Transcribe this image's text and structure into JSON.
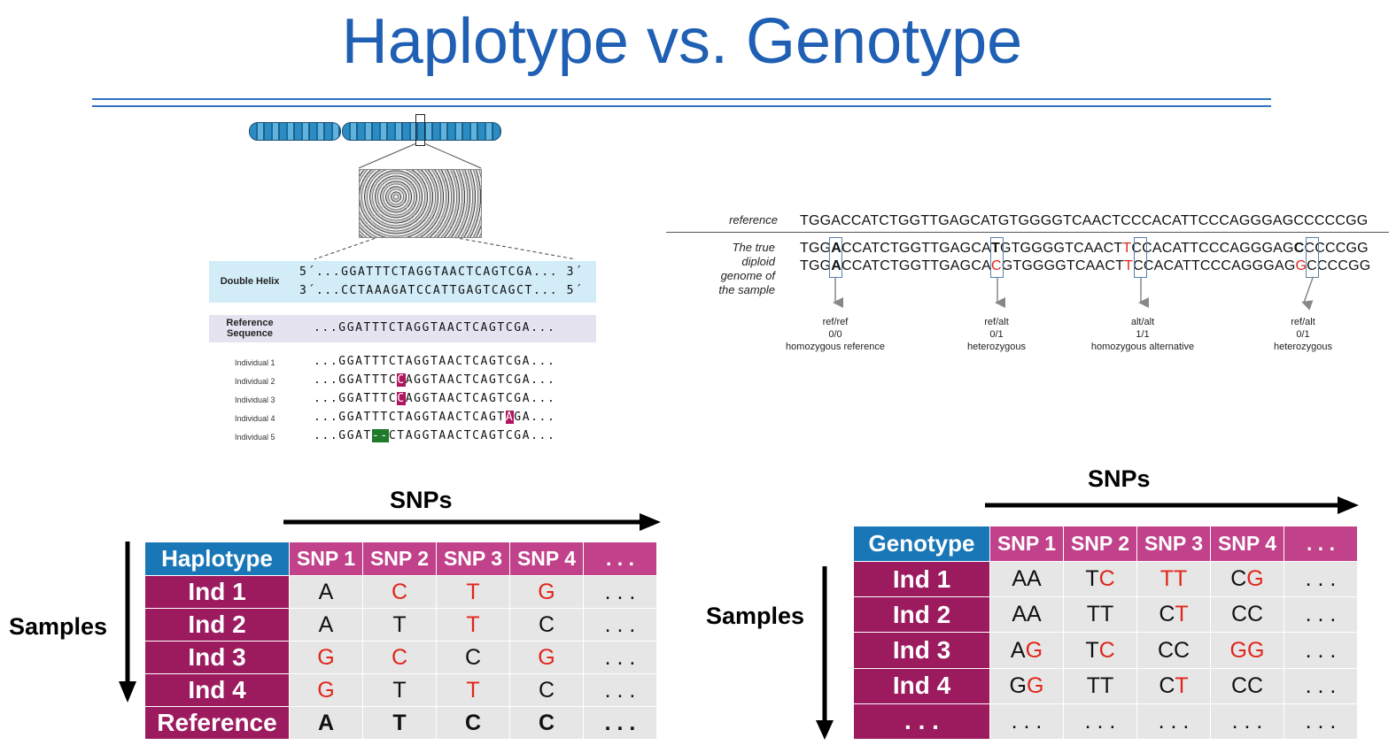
{
  "title": "Haplotype vs. Genotype",
  "left_figure": {
    "helix_label": "Double Helix",
    "helix_line1": "5´...GGATTTCTAGGTAACTCAGTCGA... 3´",
    "helix_line2": "3´...CCTAAAGATCCATTGAGTCAGCT... 5´",
    "ref_label_1": "Reference",
    "ref_label_2": "Sequence",
    "ref_seq": "...GGATTTCTAGGTAACTCAGTCGA...",
    "individuals": [
      {
        "label": "Individual 1",
        "pre": "...GGATTTCTAGGTAACTCAGTCGA...",
        "hl": "",
        "post": "",
        "hl_color": ""
      },
      {
        "label": "Individual 2",
        "pre": "...GGATTTC",
        "hl": "C",
        "post": "AGGTAACTCAGTCGA...",
        "hl_color": "#b0155f"
      },
      {
        "label": "Individual 3",
        "pre": "...GGATTTC",
        "hl": "C",
        "post": "AGGTAACTCAGTCGA...",
        "hl_color": "#b0155f"
      },
      {
        "label": "Individual 4",
        "pre": "...GGATTTCTAGGTAACTCAGT",
        "hl": "A",
        "post": "GA...",
        "hl_color": "#b0155f"
      },
      {
        "label": "Individual 5",
        "pre": "...GGAT",
        "hl": "--",
        "post": "CTAGGTAACTCAGTCGA...",
        "hl_color": "#1f7a2c"
      }
    ]
  },
  "right_figure": {
    "reference_label": "reference",
    "reference_seq": "TGGACCATCTGGTTGAGCATGTGGGGTCAACTCCCACATTCCCAGGGAGCCCCCGG",
    "diploid_label": [
      "The true",
      "diploid",
      "genome of",
      "the sample"
    ],
    "seq1": {
      "a": "TGG",
      "b": "A",
      "c": "CCATCTGGTTGAGCA",
      "d": "T",
      "e": "GTGGGGTCAACT",
      "f": "T",
      "g": "CCACATTCCCAGGGAG",
      "h": "C",
      "i": "CCCCGG"
    },
    "seq2": {
      "a": "TGG",
      "b": "A",
      "c": "CCATCTGGTTGAGCA",
      "d": "C",
      "e": "GTGGGGTCAACT",
      "f": "T",
      "g": "CCACATTCCCAGGGAG",
      "h": "G",
      "i": "CCCCGG"
    },
    "calls": [
      {
        "l1": "ref/ref",
        "l2": "0/0",
        "l3": "homozygous reference"
      },
      {
        "l1": "ref/alt",
        "l2": "0/1",
        "l3": "heterozygous"
      },
      {
        "l1": "alt/alt",
        "l2": "1/1",
        "l3": "homozygous alternative"
      },
      {
        "l1": "ref/alt",
        "l2": "0/1",
        "l3": "heterozygous"
      }
    ]
  },
  "haplotype_table": {
    "snps_label": "SNPs",
    "samples_label": "Samples",
    "corner": "Haplotype",
    "headers": [
      "SNP 1",
      "SNP 2",
      "SNP 3",
      "SNP 4",
      ". . ."
    ],
    "rows": [
      {
        "label": "Ind 1",
        "cells": [
          [
            "A"
          ],
          [
            "C"
          ],
          [
            "T"
          ],
          [
            "G"
          ],
          [
            ". . ."
          ]
        ],
        "red": [
          false,
          true,
          true,
          true,
          false
        ]
      },
      {
        "label": "Ind 2",
        "cells": [
          [
            "A"
          ],
          [
            "T"
          ],
          [
            "T"
          ],
          [
            "C"
          ],
          [
            ". . ."
          ]
        ],
        "red": [
          false,
          false,
          true,
          false,
          false
        ]
      },
      {
        "label": "Ind 3",
        "cells": [
          [
            "G"
          ],
          [
            "C"
          ],
          [
            "C"
          ],
          [
            "G"
          ],
          [
            ". . ."
          ]
        ],
        "red": [
          true,
          true,
          false,
          true,
          false
        ]
      },
      {
        "label": "Ind 4",
        "cells": [
          [
            "G"
          ],
          [
            "T"
          ],
          [
            "T"
          ],
          [
            "C"
          ],
          [
            ". . ."
          ]
        ],
        "red": [
          true,
          false,
          true,
          false,
          false
        ]
      },
      {
        "label": "Reference",
        "cells": [
          [
            "A"
          ],
          [
            "T"
          ],
          [
            "C"
          ],
          [
            "C"
          ],
          [
            ". . ."
          ]
        ],
        "red": [
          false,
          false,
          false,
          false,
          false
        ],
        "bold": true
      }
    ]
  },
  "genotype_table": {
    "snps_label": "SNPs",
    "samples_label": "Samples",
    "corner": "Genotype",
    "headers": [
      "SNP 1",
      "SNP 2",
      "SNP 3",
      "SNP 4",
      ". . ."
    ],
    "rows": [
      {
        "label": "Ind 1",
        "cells": [
          [
            [
              "A",
              false
            ],
            [
              "A",
              false
            ]
          ],
          [
            [
              "T",
              false
            ],
            [
              "C",
              true
            ]
          ],
          [
            [
              "T",
              true
            ],
            [
              "T",
              true
            ]
          ],
          [
            [
              "C",
              false
            ],
            [
              "G",
              true
            ]
          ],
          [
            [
              ". . .",
              false
            ]
          ]
        ]
      },
      {
        "label": "Ind 2",
        "cells": [
          [
            [
              "A",
              false
            ],
            [
              "A",
              false
            ]
          ],
          [
            [
              "T",
              false
            ],
            [
              "T",
              false
            ]
          ],
          [
            [
              "C",
              false
            ],
            [
              "T",
              true
            ]
          ],
          [
            [
              "C",
              false
            ],
            [
              "C",
              false
            ]
          ],
          [
            [
              ". . .",
              false
            ]
          ]
        ]
      },
      {
        "label": "Ind 3",
        "cells": [
          [
            [
              "A",
              false
            ],
            [
              "G",
              true
            ]
          ],
          [
            [
              "T",
              false
            ],
            [
              "C",
              true
            ]
          ],
          [
            [
              "C",
              false
            ],
            [
              "C",
              false
            ]
          ],
          [
            [
              "G",
              true
            ],
            [
              "G",
              true
            ]
          ],
          [
            [
              ". . .",
              false
            ]
          ]
        ]
      },
      {
        "label": "Ind 4",
        "cells": [
          [
            [
              "G",
              false
            ],
            [
              "G",
              true
            ]
          ],
          [
            [
              "T",
              false
            ],
            [
              "T",
              false
            ]
          ],
          [
            [
              "C",
              false
            ],
            [
              "T",
              true
            ]
          ],
          [
            [
              "C",
              false
            ],
            [
              "C",
              false
            ]
          ],
          [
            [
              ". . .",
              false
            ]
          ]
        ]
      },
      {
        "label": ". . .",
        "cells": [
          [
            [
              ". . .",
              false
            ]
          ],
          [
            [
              ". . .",
              false
            ]
          ],
          [
            [
              ". . .",
              false
            ]
          ],
          [
            [
              ". . .",
              false
            ]
          ],
          [
            [
              ". . .",
              false
            ]
          ]
        ]
      }
    ]
  },
  "colors": {
    "title": "#1f5fb4",
    "header_blue": "#1a77b7",
    "header_pink": "#c1428a",
    "row_magenta": "#9c1a5e",
    "allele_red": "#e0261b"
  }
}
